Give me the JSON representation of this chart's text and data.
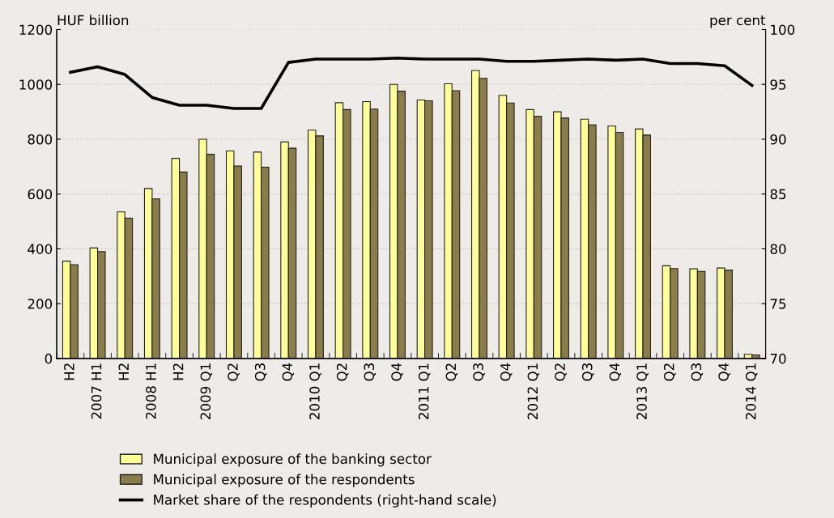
{
  "chart_data": {
    "type": "bar",
    "ylabel": "HUF billion",
    "y2label": "per cent",
    "categories": [
      "H2",
      "2007 H1",
      "H2",
      "2008 H1",
      "H2",
      "2009 Q1",
      "Q2",
      "Q3",
      "Q4",
      "2010 Q1",
      "Q2",
      "Q3",
      "Q4",
      "2011 Q1",
      "Q2",
      "Q3",
      "Q4",
      "2012 Q1",
      "Q2",
      "Q3",
      "Q4",
      "2013 Q1",
      "Q2",
      "Q3",
      "Q4",
      "2014 Q1"
    ],
    "series": [
      {
        "name": "Municipal exposure of the banking sector",
        "color": "#ffff99",
        "values": [
          355,
          403,
          535,
          620,
          730,
          800,
          757,
          753,
          790,
          833,
          933,
          937,
          1000,
          943,
          1002,
          1050,
          960,
          908,
          900,
          873,
          848,
          837,
          338,
          327,
          330,
          15
        ]
      },
      {
        "name": "Municipal exposure of the respondents",
        "color": "#8b7d4b",
        "values": [
          342,
          390,
          512,
          582,
          680,
          745,
          702,
          698,
          767,
          812,
          908,
          910,
          975,
          940,
          977,
          1022,
          932,
          883,
          877,
          852,
          825,
          815,
          328,
          318,
          322,
          13
        ]
      },
      {
        "name": "Market share of the respondents (right-hand scale)",
        "type": "line",
        "axis": "y2",
        "color": "#000000",
        "values": [
          96.1,
          96.6,
          95.9,
          93.8,
          93.1,
          93.1,
          92.8,
          92.8,
          97.0,
          97.3,
          97.3,
          97.3,
          97.4,
          97.3,
          97.3,
          97.3,
          97.1,
          97.1,
          97.2,
          97.3,
          97.2,
          97.3,
          96.9,
          96.9,
          96.7,
          94.9
        ]
      }
    ],
    "ylim": [
      0,
      1200
    ],
    "yticks": [
      0,
      200,
      400,
      600,
      800,
      1000,
      1200
    ],
    "y2lim": [
      70,
      100
    ],
    "y2ticks": [
      70,
      75,
      80,
      85,
      90,
      95,
      100
    ],
    "grid": "y",
    "legend": "bottom"
  }
}
